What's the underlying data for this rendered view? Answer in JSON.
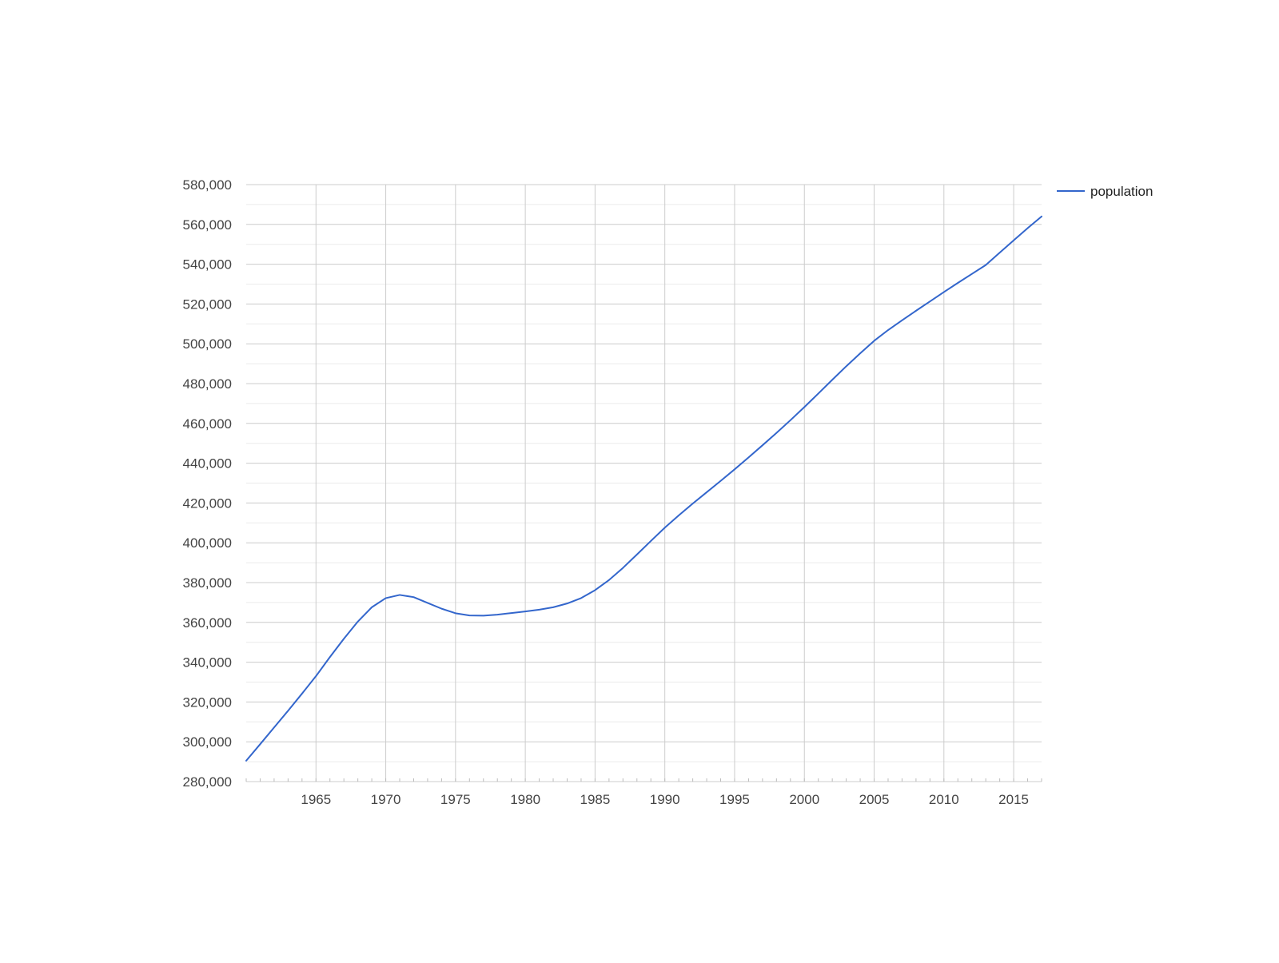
{
  "chart_data": {
    "type": "line",
    "title": "",
    "xlabel": "",
    "ylabel": "",
    "xlim": [
      1960,
      2017
    ],
    "ylim": [
      280000,
      580000
    ],
    "x_ticks": [
      1965,
      1970,
      1975,
      1980,
      1985,
      1990,
      1995,
      2000,
      2005,
      2010,
      2015
    ],
    "x_tick_labels": [
      "1965",
      "1970",
      "1975",
      "1980",
      "1985",
      "1990",
      "1995",
      "2000",
      "2005",
      "2010",
      "2015"
    ],
    "y_ticks": [
      280000,
      300000,
      320000,
      340000,
      360000,
      380000,
      400000,
      420000,
      440000,
      460000,
      480000,
      500000,
      520000,
      540000,
      560000,
      580000
    ],
    "y_tick_labels": [
      "280,000",
      "300,000",
      "320,000",
      "340,000",
      "360,000",
      "380,000",
      "400,000",
      "420,000",
      "440,000",
      "460,000",
      "480,000",
      "500,000",
      "520,000",
      "540,000",
      "560,000",
      "580,000"
    ],
    "grid": true,
    "legend_position": "right",
    "x": [
      1960,
      1961,
      1962,
      1963,
      1964,
      1965,
      1966,
      1967,
      1968,
      1969,
      1970,
      1971,
      1972,
      1973,
      1974,
      1975,
      1976,
      1977,
      1978,
      1979,
      1980,
      1981,
      1982,
      1983,
      1984,
      1985,
      1986,
      1987,
      1988,
      1989,
      1990,
      1991,
      1992,
      1993,
      1994,
      1995,
      1996,
      1997,
      1998,
      1999,
      2000,
      2001,
      2002,
      2003,
      2004,
      2005,
      2006,
      2007,
      2008,
      2009,
      2010,
      2011,
      2012,
      2013,
      2014,
      2015,
      2016,
      2017
    ],
    "series": [
      {
        "name": "population",
        "color": "#3366cc",
        "values": [
          290500,
          298800,
          307200,
          315600,
          324200,
          333000,
          342600,
          351800,
          360400,
          367600,
          372200,
          373800,
          372700,
          369800,
          366900,
          364600,
          363500,
          363400,
          363900,
          364700,
          365500,
          366400,
          367600,
          369500,
          372200,
          376200,
          381300,
          387400,
          394100,
          400900,
          407600,
          413800,
          419700,
          425400,
          431100,
          436900,
          442900,
          449000,
          455200,
          461600,
          468200,
          475000,
          481900,
          488700,
          495200,
          501500,
          506900,
          511800,
          516600,
          521300,
          526000,
          530600,
          535100,
          539600,
          545800,
          552000,
          558100,
          564000
        ]
      }
    ]
  }
}
